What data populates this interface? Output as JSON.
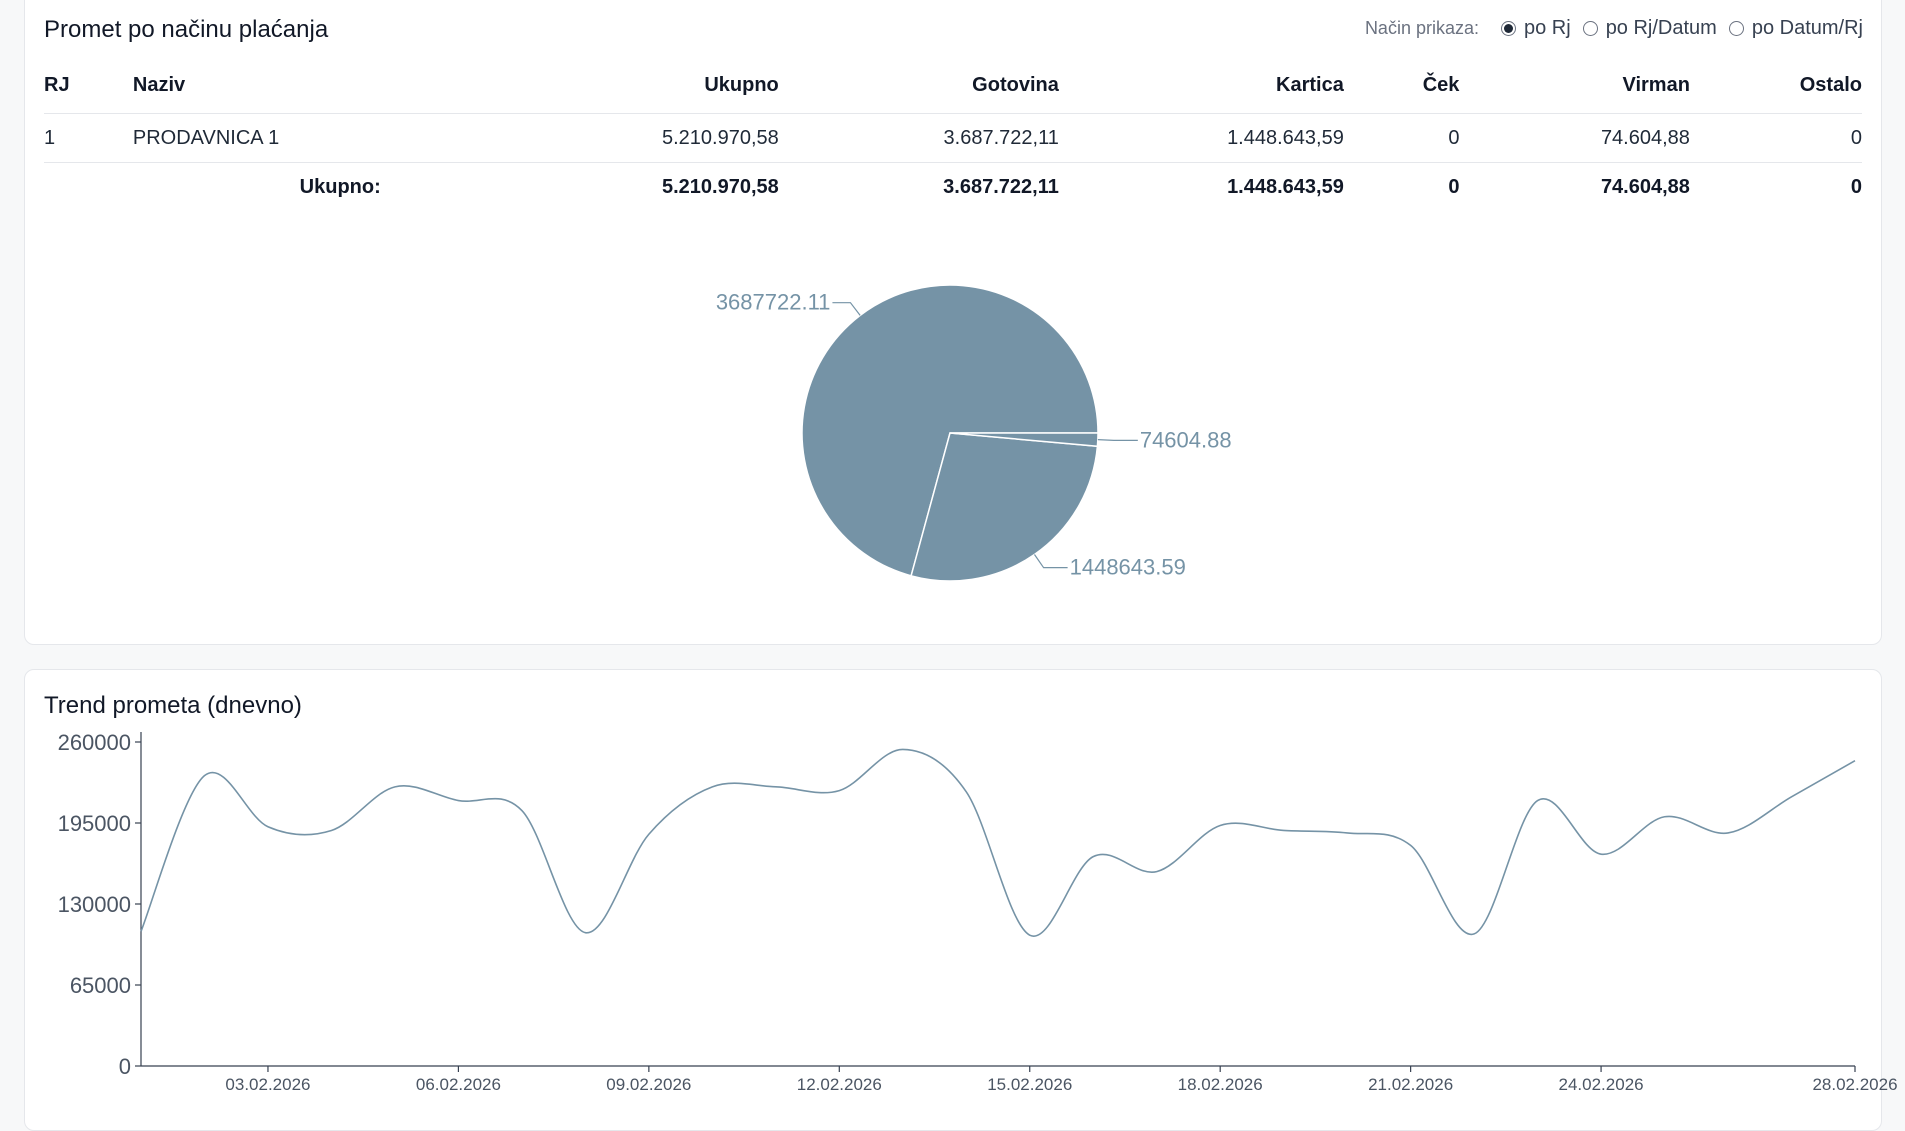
{
  "payment_card": {
    "title": "Promet po načinu plaćanja",
    "view_label": "Način prikaza:",
    "view_options": [
      {
        "label": "po Rj",
        "selected": true
      },
      {
        "label": "po Rj/Datum",
        "selected": false
      },
      {
        "label": "po Datum/Rj",
        "selected": false
      }
    ],
    "table": {
      "headers": [
        "RJ",
        "Naziv",
        "Ukupno",
        "Gotovina",
        "Kartica",
        "Ček",
        "Virman",
        "Ostalo"
      ],
      "rows": [
        [
          "1",
          "PRODAVNICA 1",
          "5.210.970,58",
          "3.687.722,11",
          "1.448.643,59",
          "0",
          "74.604,88",
          "0"
        ]
      ],
      "total_label": "Ukupno:",
      "totals": [
        "5.210.970,58",
        "3.687.722,11",
        "1.448.643,59",
        "0",
        "74.604,88",
        "0"
      ]
    }
  },
  "chart_data": [
    {
      "type": "pie",
      "slices": [
        {
          "label": "3687722.11",
          "value": 3687722.11
        },
        {
          "label": "1448643.59",
          "value": 1448643.59
        },
        {
          "label": "74604.88",
          "value": 74604.88
        }
      ],
      "color": "#7593a6"
    },
    {
      "type": "line",
      "title": "Trend prometa (dnevno)",
      "yticks": [
        "260000",
        "195000",
        "130000",
        "65000",
        "0"
      ],
      "ylim": [
        0,
        260000
      ],
      "x": [
        "01.02.2026",
        "02.02.2026",
        "03.02.2026",
        "04.02.2026",
        "05.02.2026",
        "06.02.2026",
        "07.02.2026",
        "08.02.2026",
        "09.02.2026",
        "10.02.2026",
        "11.02.2026",
        "12.02.2026",
        "13.02.2026",
        "14.02.2026",
        "15.02.2026",
        "16.02.2026",
        "17.02.2026",
        "18.02.2026",
        "19.02.2026",
        "20.02.2026",
        "21.02.2026",
        "22.02.2026",
        "23.02.2026",
        "24.02.2026",
        "25.02.2026",
        "26.02.2026",
        "27.02.2026",
        "28.02.2026"
      ],
      "xtick_labels": [
        "03.02.2026",
        "06.02.2026",
        "09.02.2026",
        "12.02.2026",
        "15.02.2026",
        "18.02.2026",
        "21.02.2026",
        "24.02.2026",
        "28.02.2026"
      ],
      "values": [
        108000,
        233000,
        192000,
        189000,
        224000,
        213000,
        205000,
        107000,
        186000,
        224000,
        224000,
        221000,
        254000,
        220000,
        105000,
        168000,
        156000,
        193000,
        189000,
        187000,
        177000,
        106000,
        213000,
        170000,
        200000,
        187000,
        216000,
        245000
      ],
      "color": "#7593a6",
      "grid": false
    }
  ]
}
